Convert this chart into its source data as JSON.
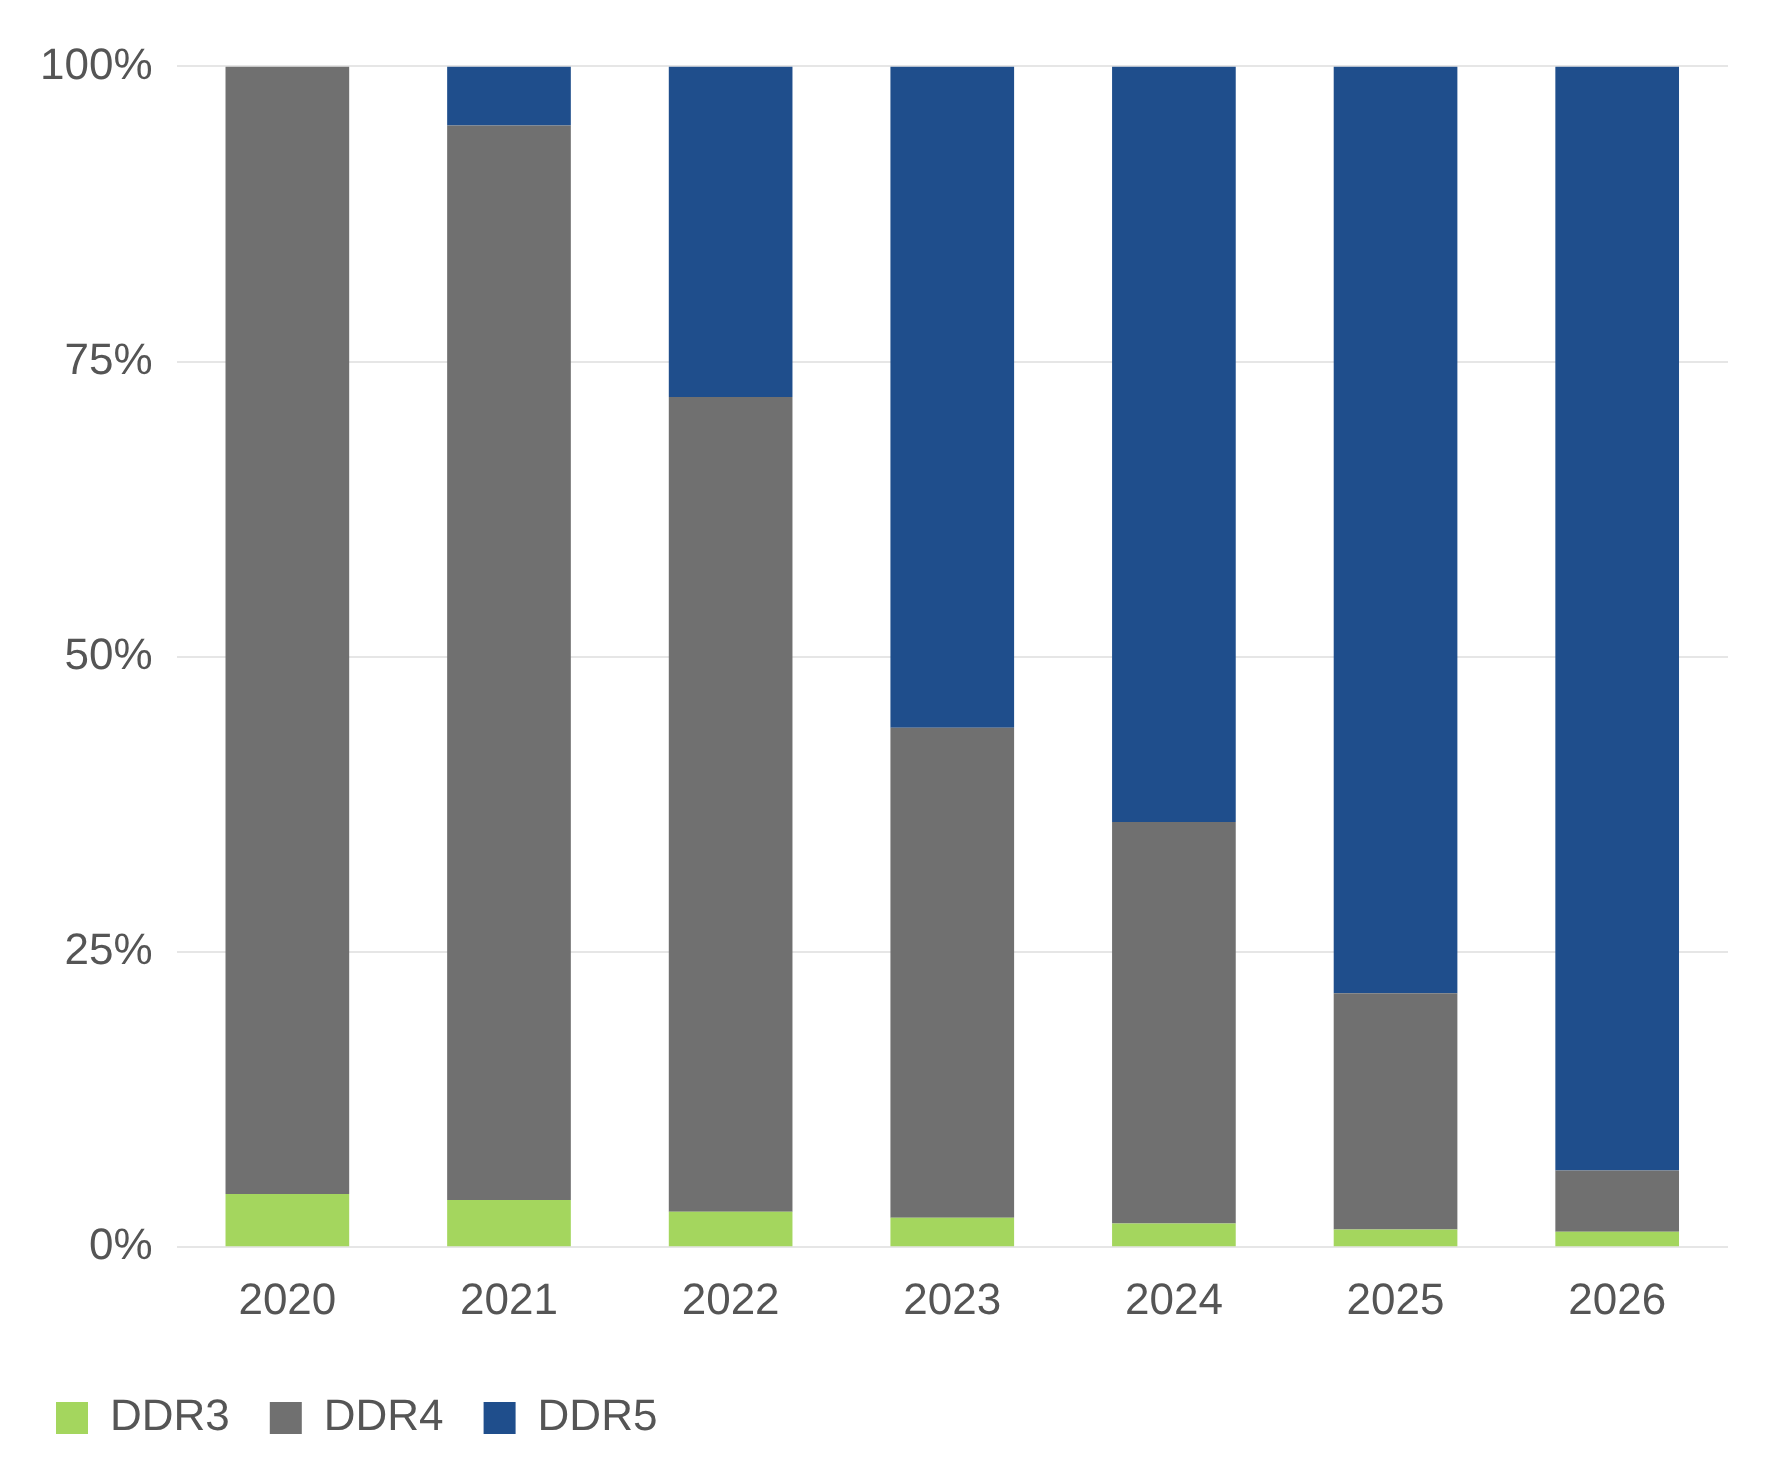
{
  "chart_data": {
    "type": "bar",
    "stacked": true,
    "categories": [
      "2020",
      "2021",
      "2022",
      "2023",
      "2024",
      "2025",
      "2026"
    ],
    "series": [
      {
        "name": "DDR3",
        "color": "#a4d65e",
        "values": [
          4.5,
          4,
          3,
          2.5,
          2,
          1.5,
          1.3
        ]
      },
      {
        "name": "DDR4",
        "color": "#707070",
        "values": [
          95.5,
          91,
          69,
          41.5,
          34,
          20,
          5.2
        ]
      },
      {
        "name": "DDR5",
        "color": "#1f4e8c",
        "values": [
          0,
          5,
          28,
          56,
          64,
          78.5,
          93.5
        ]
      }
    ],
    "ylim": [
      0,
      100
    ],
    "yticks": [
      {
        "value": 0,
        "label": "0%"
      },
      {
        "value": 25,
        "label": "25%"
      },
      {
        "value": 50,
        "label": "50%"
      },
      {
        "value": 75,
        "label": "75%"
      },
      {
        "value": 100,
        "label": "100%"
      }
    ],
    "grid": "y",
    "legend": "bottom left"
  }
}
